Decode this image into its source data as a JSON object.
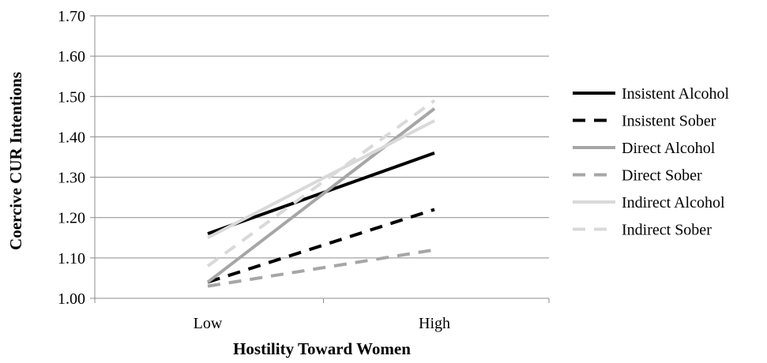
{
  "chart_data": {
    "type": "line",
    "title": "",
    "xlabel": "Hostility Toward Women",
    "ylabel": "Coercive CUR Intentions",
    "categories": [
      "Low",
      "High"
    ],
    "ylim": [
      1.0,
      1.7
    ],
    "yticks": [
      "1.00",
      "1.10",
      "1.20",
      "1.30",
      "1.40",
      "1.50",
      "1.60",
      "1.70"
    ],
    "grid": true,
    "legend_position": "right",
    "series": [
      {
        "name": "Insistent Alcohol",
        "values": [
          1.16,
          1.36
        ],
        "color": "#000000",
        "dashed": false
      },
      {
        "name": "Insistent Sober",
        "values": [
          1.04,
          1.22
        ],
        "color": "#000000",
        "dashed": true
      },
      {
        "name": "Direct Alcohol",
        "values": [
          1.04,
          1.47
        ],
        "color": "#a6a6a6",
        "dashed": false
      },
      {
        "name": "Direct Sober",
        "values": [
          1.03,
          1.12
        ],
        "color": "#a6a6a6",
        "dashed": true
      },
      {
        "name": "Indirect Alcohol",
        "values": [
          1.15,
          1.44
        ],
        "color": "#d9d9d9",
        "dashed": false
      },
      {
        "name": "Indirect Sober",
        "values": [
          1.08,
          1.49
        ],
        "color": "#d9d9d9",
        "dashed": true
      }
    ]
  }
}
